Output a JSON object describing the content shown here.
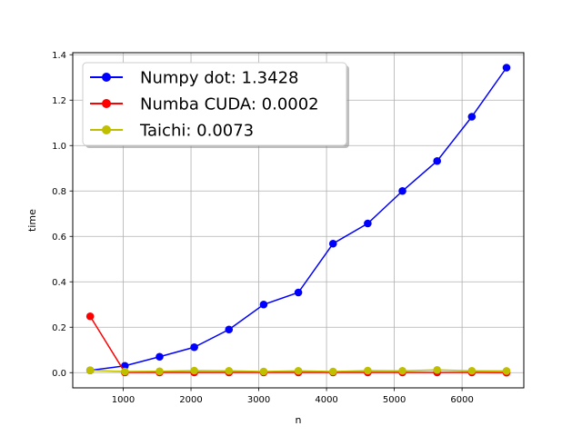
{
  "chart_data": {
    "type": "line",
    "title": "",
    "xlabel": "n",
    "ylabel": "time",
    "xlim": [
      255,
      6911
    ],
    "ylim": [
      -0.067,
      1.409
    ],
    "xticks": [
      1000,
      2000,
      3000,
      4000,
      5000,
      6000
    ],
    "yticks": [
      0.0,
      0.2,
      0.4,
      0.6,
      0.8,
      1.0,
      1.2,
      1.4
    ],
    "xtick_labels": [
      "1000",
      "2000",
      "3000",
      "4000",
      "5000",
      "6000"
    ],
    "ytick_labels": [
      "0.0",
      "0.2",
      "0.4",
      "0.6",
      "0.8",
      "1.0",
      "1.2",
      "1.4"
    ],
    "grid": true,
    "legend": "upper-left",
    "x": [
      512,
      1024,
      1536,
      2048,
      2560,
      3072,
      3584,
      4096,
      4608,
      5120,
      5632,
      6144,
      6656
    ],
    "series": [
      {
        "name": "Numpy dot: 1.3428",
        "color": "#0000ff",
        "values": [
          0.01,
          0.03,
          0.07,
          0.112,
          0.19,
          0.3,
          0.353,
          0.568,
          0.657,
          0.8,
          0.932,
          1.127,
          1.343
        ]
      },
      {
        "name": "Numba CUDA: 0.0002",
        "color": "#ff0000",
        "values": [
          0.248,
          0.001,
          0.001,
          0.001,
          0.001,
          0.001,
          0.001,
          0.001,
          0.001,
          0.001,
          0.001,
          0.001,
          0.0002
        ]
      },
      {
        "name": "Taichi: 0.0073",
        "color": "#bfbf00",
        "values": [
          0.01,
          0.005,
          0.006,
          0.009,
          0.008,
          0.005,
          0.008,
          0.005,
          0.009,
          0.008,
          0.012,
          0.008,
          0.0073
        ]
      }
    ]
  }
}
